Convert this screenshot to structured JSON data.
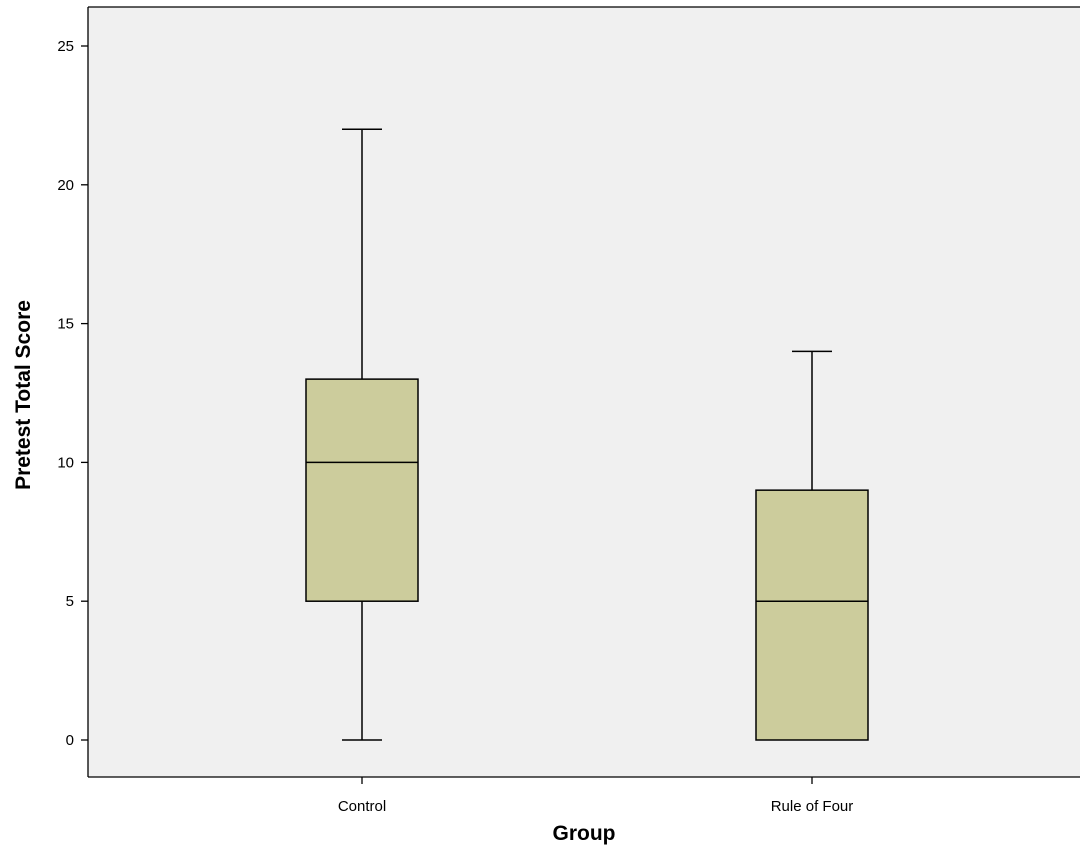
{
  "chart_data": {
    "type": "boxplot",
    "title": "",
    "xlabel": "Group",
    "ylabel": "Pretest Total Score",
    "ylim": [
      -1,
      26
    ],
    "yticks": [
      0,
      5,
      10,
      15,
      20,
      25
    ],
    "grid": false,
    "categories": [
      "Control",
      "Rule of Four"
    ],
    "boxes": [
      {
        "category": "Control",
        "min": 0,
        "q1": 5,
        "median": 10,
        "q3": 13,
        "max": 22
      },
      {
        "category": "Rule of Four",
        "min": 0,
        "q1": 0,
        "median": 5,
        "q3": 9,
        "max": 14
      }
    ],
    "colors": {
      "plot_background": "#f0f0f0",
      "box_fill": "#cccc9c",
      "line": "#000000"
    }
  }
}
